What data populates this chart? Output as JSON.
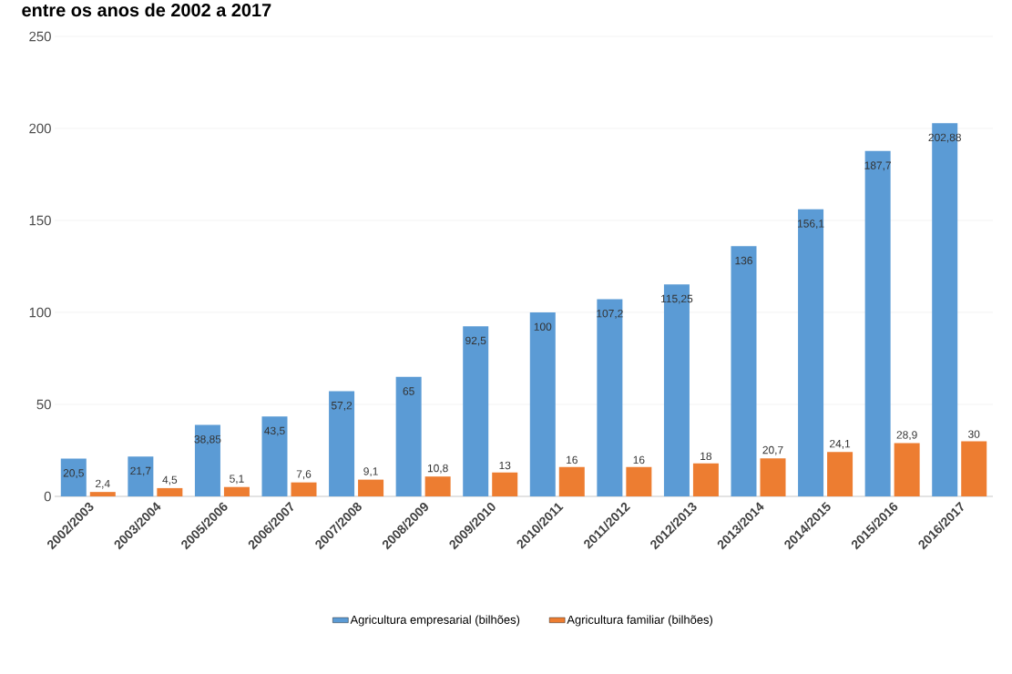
{
  "chart_data": {
    "type": "bar",
    "title": "entre os anos de 2002 a 2017",
    "categories": [
      "2002/2003",
      "2003/2004",
      "2005/2006",
      "2006/2007",
      "2007/2008",
      "2008/2009",
      "2009/2010",
      "2010/2011",
      "2011/2012",
      "2012/2013",
      "2013/2014",
      "2014/2015",
      "2015/2016",
      "2016/2017"
    ],
    "series": [
      {
        "name": "Agricultura empresarial (bilhões)",
        "color": "#5b9bd5",
        "values": [
          20.5,
          21.7,
          38.85,
          43.5,
          57.2,
          65,
          92.5,
          100,
          107.2,
          115.25,
          136,
          156.1,
          187.7,
          202.88
        ],
        "value_labels": [
          "20,5",
          "21,7",
          "38,85",
          "43,5",
          "57,2",
          "65",
          "92,5",
          "100",
          "107,2",
          "115,25",
          "136",
          "156,1",
          "187,7",
          "202,88"
        ]
      },
      {
        "name": "Agricultura familiar (bilhões)",
        "color": "#ed7d31",
        "values": [
          2.4,
          4.5,
          5.1,
          7.6,
          9.1,
          10.8,
          13,
          16,
          16,
          18,
          20.7,
          24.1,
          28.9,
          30
        ],
        "value_labels": [
          "2,4",
          "4,5",
          "5,1",
          "7,6",
          "9,1",
          "10,8",
          "13",
          "16",
          "16",
          "18",
          "20,7",
          "24,1",
          "28,9",
          "30"
        ]
      }
    ],
    "ylim": [
      0,
      250
    ],
    "yticks": [
      0,
      50,
      100,
      150,
      200,
      250
    ],
    "grid": "y",
    "legend": "bottom"
  }
}
